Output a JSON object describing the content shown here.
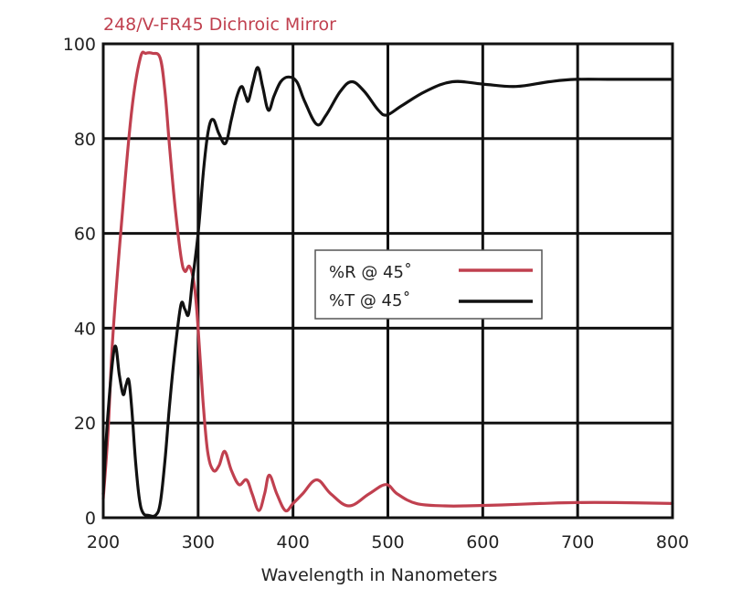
{
  "chart_data": {
    "type": "line",
    "title": "248/V-FR45 Dichroic Mirror",
    "xlabel": "Wavelength in Nanometers",
    "ylabel": "",
    "xlim": [
      200,
      800
    ],
    "ylim": [
      0,
      100
    ],
    "x_ticks": [
      "200",
      "300",
      "400",
      "500",
      "600",
      "700",
      "800"
    ],
    "x_tick_values": [
      200,
      300,
      400,
      500,
      600,
      700,
      800
    ],
    "y_ticks": [
      "0",
      "20",
      "40",
      "60",
      "80",
      "100"
    ],
    "y_tick_values": [
      0,
      20,
      40,
      60,
      80,
      100
    ],
    "grid": true,
    "legend_position": "center-right",
    "series": [
      {
        "name": "%R @ 45˚",
        "color": "#c0404f",
        "x": [
          200,
          205,
          210,
          220,
          230,
          239,
          245,
          252,
          260,
          265,
          270,
          276,
          282,
          286,
          291,
          296,
          300,
          305,
          310,
          316,
          322,
          328,
          335,
          343,
          351,
          357,
          364,
          370,
          375,
          383,
          392,
          400,
          410,
          425,
          440,
          459,
          480,
          498,
          510,
          530,
          560,
          582,
          620,
          660,
          698,
          740,
          800
        ],
        "y": [
          4,
          18,
          38,
          64,
          86,
          97,
          98,
          98,
          97,
          90,
          78,
          65,
          55,
          52,
          53,
          49,
          40,
          25,
          14,
          10,
          11,
          14,
          10,
          7,
          8,
          5,
          1.5,
          5,
          9,
          5,
          1.5,
          3,
          5,
          8,
          5,
          2.5,
          5,
          7,
          5,
          3,
          2.5,
          2.5,
          2.7,
          3,
          3.2,
          3.2,
          3
        ]
      },
      {
        "name": "%T @ 45˚",
        "color": "#111111",
        "x": [
          200,
          205,
          212,
          217,
          221,
          224,
          227,
          230,
          234,
          238,
          242,
          248,
          255,
          260,
          265,
          270,
          276,
          282,
          286,
          290,
          294,
          300,
          306,
          311,
          316,
          322,
          329,
          335,
          341,
          346,
          350,
          353,
          358,
          363,
          368,
          374,
          380,
          387,
          395,
          404,
          412,
          425,
          435,
          450,
          462,
          475,
          490,
          499,
          515,
          540,
          568,
          600,
          635,
          670,
          698,
          740,
          800
        ],
        "y": [
          5,
          22,
          36,
          30,
          26,
          28,
          29,
          23,
          12,
          4,
          1,
          0.5,
          0.5,
          3,
          12,
          24,
          36,
          45,
          44,
          43,
          50,
          60,
          74,
          82,
          84,
          81,
          79,
          84,
          89,
          91,
          89,
          88,
          92,
          95,
          91,
          86,
          89,
          92,
          93,
          92,
          88,
          83,
          85,
          90,
          92,
          90,
          86,
          85,
          87,
          90,
          92,
          91.5,
          91,
          92,
          92.5,
          92.5,
          92.5
        ]
      }
    ]
  }
}
